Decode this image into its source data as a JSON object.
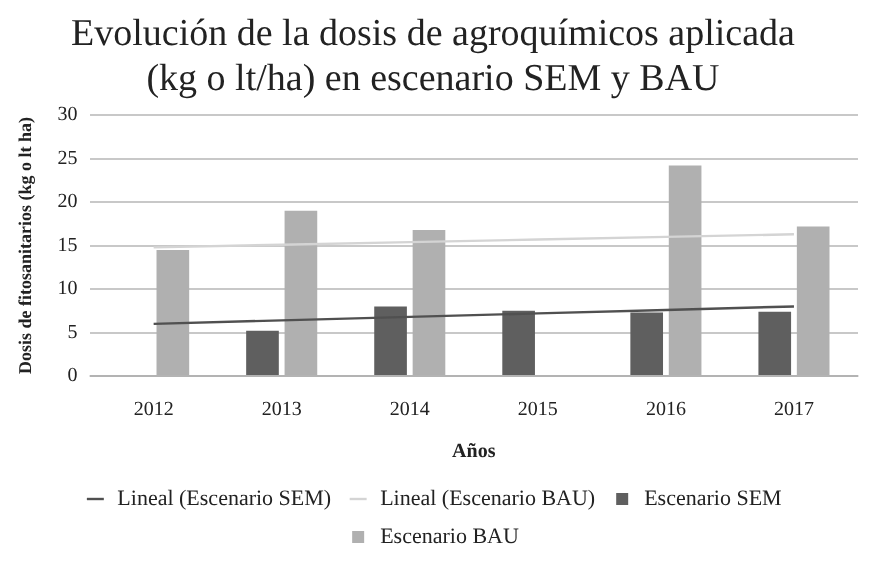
{
  "chart_data": {
    "type": "bar",
    "title": "Evolución de la dosis de agroquímicos aplicada (kg o lt/ha) en escenario SEM y BAU",
    "xlabel": "Años",
    "ylabel": "Dosis de fitosanitarios (kg o lt ha)",
    "categories": [
      "2012",
      "2013",
      "2014",
      "2015",
      "2016",
      "2017"
    ],
    "series": [
      {
        "name": "Escenario SEM",
        "color": "#5f5f5f",
        "values": [
          null,
          5.2,
          8.0,
          7.5,
          7.3,
          7.4
        ]
      },
      {
        "name": "Escenario BAU",
        "color": "#b0b0b0",
        "values": [
          14.5,
          19.0,
          16.8,
          null,
          24.2,
          17.2
        ]
      },
      {
        "name": "Lineal (Escenario SEM)",
        "type": "line",
        "color": "#505050",
        "values": [
          6.0,
          6.4,
          6.8,
          7.2,
          7.6,
          8.0
        ]
      },
      {
        "name": "Lineal (Escenario BAU)",
        "type": "line",
        "color": "#d4d4d4",
        "values": [
          14.8,
          15.1,
          15.4,
          15.7,
          16.0,
          16.3
        ]
      }
    ],
    "ylim": [
      0,
      30
    ],
    "yticks": [
      0,
      5,
      10,
      15,
      20,
      25,
      30
    ],
    "grid": "y",
    "legend": "bottom",
    "marker": "none"
  }
}
